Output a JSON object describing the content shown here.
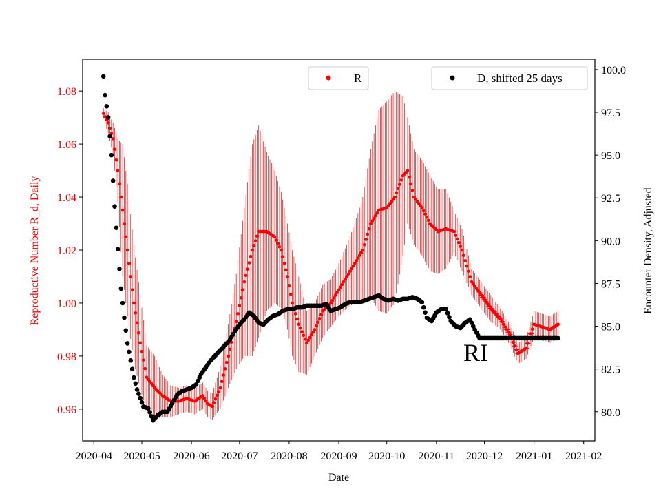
{
  "chart_data": {
    "type": "scatter",
    "title": "",
    "xlabel": "Date",
    "ylabel_left": "Reproductive Number R_d, Daily",
    "ylabel_right": "Encounter Density, Adjusted",
    "ylim_left": [
      0.948,
      1.092
    ],
    "ylim_right": [
      78.3,
      100.6
    ],
    "xlim_day": [
      -7,
      313
    ],
    "x_ticks": [
      {
        "label": "2020-04",
        "day": 0
      },
      {
        "label": "2020-05",
        "day": 30
      },
      {
        "label": "2020-06",
        "day": 61
      },
      {
        "label": "2020-07",
        "day": 91
      },
      {
        "label": "2020-08",
        "day": 122
      },
      {
        "label": "2020-09",
        "day": 153
      },
      {
        "label": "2020-10",
        "day": 183
      },
      {
        "label": "2020-11",
        "day": 214
      },
      {
        "label": "2020-12",
        "day": 244
      },
      {
        "label": "2021-01",
        "day": 275
      },
      {
        "label": "2021-02",
        "day": 306
      }
    ],
    "y_ticks_left": [
      0.96,
      0.98,
      1.0,
      1.02,
      1.04,
      1.06,
      1.08
    ],
    "y_ticks_left_labels": [
      "0.96",
      "0.98",
      "1.00",
      "1.02",
      "1.04",
      "1.06",
      "1.08"
    ],
    "y_ticks_right": [
      80.0,
      82.5,
      85.0,
      87.5,
      90.0,
      92.5,
      95.0,
      97.5,
      100.0
    ],
    "y_ticks_right_labels": [
      "80.0",
      "82.5",
      "85.0",
      "87.5",
      "90.0",
      "92.5",
      "95.0",
      "97.5",
      "100.0"
    ],
    "annotation": "RI",
    "colors": {
      "r_series": "#ff0000",
      "d_series": "#000000",
      "left_axis_text": "#ff0000"
    },
    "series": [
      {
        "name": "R",
        "axis": "left",
        "legend_position": "upper-center",
        "color": "#ff0000",
        "comment": "anchor points [day, value, error]; plotted daily by interpolation",
        "anchors": [
          [
            6,
            1.0715,
            0.002
          ],
          [
            9,
            1.068,
            0.004
          ],
          [
            12,
            1.062,
            0.006
          ],
          [
            15,
            1.05,
            0.012
          ],
          [
            18,
            1.035,
            0.025
          ],
          [
            21,
            1.02,
            0.025
          ],
          [
            25,
            1.0,
            0.022
          ],
          [
            29,
            0.985,
            0.018
          ],
          [
            33,
            0.972,
            0.012
          ],
          [
            38,
            0.968,
            0.012
          ],
          [
            43,
            0.965,
            0.008
          ],
          [
            48,
            0.963,
            0.006
          ],
          [
            53,
            0.963,
            0.005
          ],
          [
            58,
            0.964,
            0.005
          ],
          [
            63,
            0.963,
            0.005
          ],
          [
            68,
            0.965,
            0.005
          ],
          [
            71,
            0.962,
            0.005
          ],
          [
            74,
            0.961,
            0.005
          ],
          [
            79,
            0.968,
            0.008
          ],
          [
            84,
            0.98,
            0.012
          ],
          [
            89,
            0.993,
            0.018
          ],
          [
            94,
            1.008,
            0.028
          ],
          [
            99,
            1.02,
            0.04
          ],
          [
            103,
            1.027,
            0.04
          ],
          [
            108,
            1.027,
            0.03
          ],
          [
            113,
            1.025,
            0.025
          ],
          [
            117,
            1.02,
            0.022
          ],
          [
            121,
            1.01,
            0.02
          ],
          [
            124,
            1.0,
            0.02
          ],
          [
            128,
            0.992,
            0.018
          ],
          [
            133,
            0.985,
            0.012
          ],
          [
            138,
            0.99,
            0.01
          ],
          [
            143,
            0.997,
            0.01
          ],
          [
            148,
            1.0,
            0.009
          ],
          [
            153,
            1.005,
            0.01
          ],
          [
            158,
            1.01,
            0.012
          ],
          [
            163,
            1.015,
            0.015
          ],
          [
            168,
            1.02,
            0.02
          ],
          [
            173,
            1.03,
            0.028
          ],
          [
            178,
            1.035,
            0.038
          ],
          [
            183,
            1.036,
            0.04
          ],
          [
            188,
            1.04,
            0.04
          ],
          [
            193,
            1.048,
            0.03
          ],
          [
            196,
            1.05,
            0.02
          ],
          [
            200,
            1.04,
            0.018
          ],
          [
            205,
            1.036,
            0.018
          ],
          [
            210,
            1.03,
            0.018
          ],
          [
            215,
            1.027,
            0.016
          ],
          [
            220,
            1.028,
            0.015
          ],
          [
            225,
            1.027,
            0.008
          ],
          [
            230,
            1.02,
            0.008
          ],
          [
            236,
            1.008,
            0.005
          ],
          [
            242,
            1.003,
            0.005
          ],
          [
            248,
            0.998,
            0.005
          ],
          [
            254,
            0.994,
            0.004
          ],
          [
            260,
            0.988,
            0.004
          ],
          [
            265,
            0.981,
            0.004
          ],
          [
            270,
            0.983,
            0.004
          ],
          [
            275,
            0.992,
            0.005
          ],
          [
            280,
            0.991,
            0.005
          ],
          [
            285,
            0.99,
            0.005
          ],
          [
            290,
            0.992,
            0.005
          ]
        ]
      },
      {
        "name": "D, shifted 25 days",
        "axis": "right",
        "legend_position": "upper-right",
        "color": "#000000",
        "comment": "anchor points [day, value]; plotted daily by interpolation",
        "anchors": [
          [
            6,
            99.6
          ],
          [
            7,
            98.5
          ],
          [
            9,
            97.2
          ],
          [
            11,
            95.0
          ],
          [
            13,
            92.0
          ],
          [
            15,
            89.5
          ],
          [
            17,
            87.2
          ],
          [
            19,
            85.5
          ],
          [
            21,
            84.0
          ],
          [
            23,
            83.0
          ],
          [
            25,
            82.0
          ],
          [
            27,
            81.3
          ],
          [
            29,
            80.8
          ],
          [
            31,
            80.3
          ],
          [
            34,
            80.2
          ],
          [
            37,
            79.5
          ],
          [
            40,
            79.8
          ],
          [
            43,
            80.0
          ],
          [
            46,
            80.0
          ],
          [
            49,
            80.5
          ],
          [
            52,
            81.0
          ],
          [
            55,
            81.2
          ],
          [
            58,
            81.3
          ],
          [
            61,
            81.4
          ],
          [
            64,
            81.6
          ],
          [
            67,
            82.2
          ],
          [
            70,
            82.6
          ],
          [
            73,
            83.0
          ],
          [
            76,
            83.3
          ],
          [
            79,
            83.6
          ],
          [
            82,
            83.9
          ],
          [
            85,
            84.2
          ],
          [
            88,
            84.7
          ],
          [
            91,
            85.1
          ],
          [
            94,
            85.4
          ],
          [
            97,
            85.8
          ],
          [
            100,
            85.6
          ],
          [
            103,
            85.2
          ],
          [
            106,
            85.1
          ],
          [
            109,
            85.4
          ],
          [
            112,
            85.6
          ],
          [
            115,
            85.7
          ],
          [
            118,
            85.9
          ],
          [
            121,
            86.0
          ],
          [
            124,
            86.0
          ],
          [
            127,
            86.1
          ],
          [
            130,
            86.1
          ],
          [
            133,
            86.2
          ],
          [
            136,
            86.2
          ],
          [
            139,
            86.2
          ],
          [
            142,
            86.2
          ],
          [
            145,
            86.3
          ],
          [
            148,
            85.9
          ],
          [
            151,
            86.0
          ],
          [
            154,
            86.1
          ],
          [
            157,
            86.3
          ],
          [
            160,
            86.4
          ],
          [
            163,
            86.4
          ],
          [
            166,
            86.4
          ],
          [
            169,
            86.5
          ],
          [
            172,
            86.6
          ],
          [
            175,
            86.7
          ],
          [
            178,
            86.8
          ],
          [
            181,
            86.6
          ],
          [
            184,
            86.5
          ],
          [
            187,
            86.6
          ],
          [
            190,
            86.5
          ],
          [
            193,
            86.6
          ],
          [
            196,
            86.6
          ],
          [
            199,
            86.7
          ],
          [
            202,
            86.6
          ],
          [
            205,
            86.4
          ],
          [
            208,
            85.5
          ],
          [
            211,
            85.3
          ],
          [
            214,
            85.8
          ],
          [
            217,
            86.0
          ],
          [
            220,
            86.0
          ],
          [
            223,
            85.3
          ],
          [
            226,
            85.0
          ],
          [
            229,
            84.9
          ],
          [
            232,
            85.2
          ],
          [
            235,
            85.4
          ],
          [
            238,
            84.8
          ],
          [
            241,
            84.3
          ],
          [
            245,
            84.3
          ],
          [
            260,
            84.3
          ],
          [
            275,
            84.3
          ],
          [
            290,
            84.3
          ]
        ]
      }
    ]
  }
}
